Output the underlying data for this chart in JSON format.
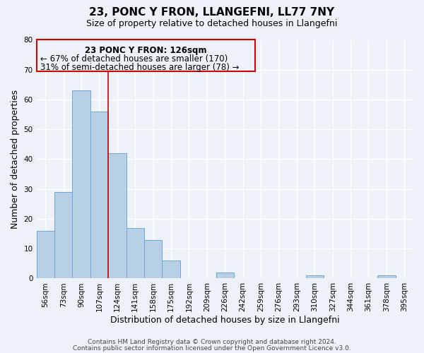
{
  "title": "23, PONC Y FRON, LLANGEFNI, LL77 7NY",
  "subtitle": "Size of property relative to detached houses in Llangefni",
  "xlabel": "Distribution of detached houses by size in Llangefni",
  "ylabel": "Number of detached properties",
  "bin_labels": [
    "56sqm",
    "73sqm",
    "90sqm",
    "107sqm",
    "124sqm",
    "141sqm",
    "158sqm",
    "175sqm",
    "192sqm",
    "209sqm",
    "226sqm",
    "242sqm",
    "259sqm",
    "276sqm",
    "293sqm",
    "310sqm",
    "327sqm",
    "344sqm",
    "361sqm",
    "378sqm",
    "395sqm"
  ],
  "bar_values": [
    16,
    29,
    63,
    56,
    42,
    17,
    13,
    6,
    0,
    0,
    2,
    0,
    0,
    0,
    0,
    1,
    0,
    0,
    0,
    1,
    0
  ],
  "bar_color": "#b8cfe8",
  "bar_edge_color": "#6fa8d0",
  "ylim": [
    0,
    80
  ],
  "yticks": [
    0,
    10,
    20,
    30,
    40,
    50,
    60,
    70,
    80
  ],
  "property_line_x": 4,
  "property_line_color": "#cc0000",
  "annotation_box_edge_color": "#cc0000",
  "annotation_text_line1": "23 PONC Y FRON: 126sqm",
  "annotation_text_line2": "← 67% of detached houses are smaller (170)",
  "annotation_text_line3": "31% of semi-detached houses are larger (78) →",
  "footer_line1": "Contains HM Land Registry data © Crown copyright and database right 2024.",
  "footer_line2": "Contains public sector information licensed under the Open Government Licence v3.0.",
  "background_color": "#eef2f8",
  "grid_color": "#ffffff",
  "title_fontsize": 11,
  "subtitle_fontsize": 9,
  "axis_label_fontsize": 9,
  "tick_fontsize": 7.5,
  "annotation_fontsize": 8.5,
  "footer_fontsize": 6.5
}
